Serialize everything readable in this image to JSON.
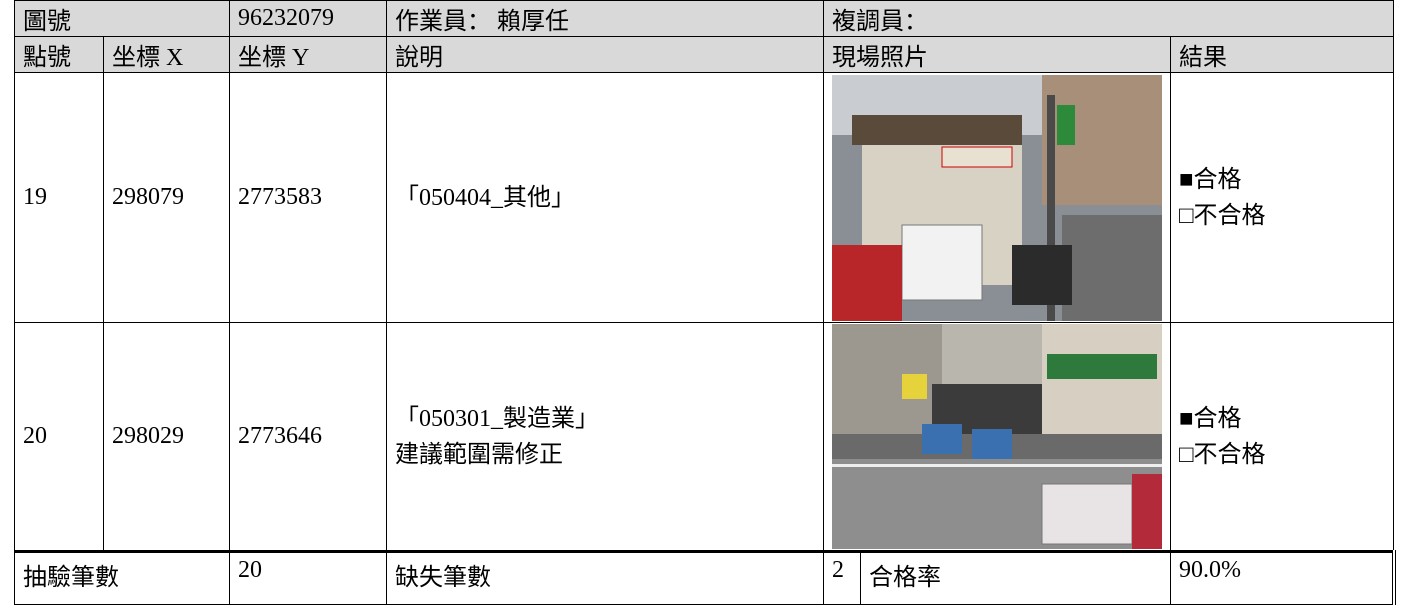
{
  "header": {
    "map_label": "圖號",
    "map_number": "96232079",
    "operator": "作業員： 賴厚任",
    "reviewer": "複調員："
  },
  "columns": [
    "點號",
    "坐標 X",
    "坐標 Y",
    "說明",
    "現場照片",
    "結果"
  ],
  "rows": [
    {
      "point": "19",
      "x": "298079",
      "y": "2773583",
      "description": [
        "「050404_其他」"
      ],
      "result": [
        "■合格",
        "□不合格"
      ]
    },
    {
      "point": "20",
      "x": "298029",
      "y": "2773646",
      "description": [
        "「050301_製造業」",
        "建議範圍需修正"
      ],
      "result": [
        "■合格",
        "□不合格"
      ]
    }
  ],
  "footer": {
    "sample_label": "抽驗筆數",
    "sample_count": "20",
    "defect_label": "缺失筆數",
    "defect_count": "2",
    "pass_rate_label": "合格率",
    "pass_rate": "90.0%"
  }
}
